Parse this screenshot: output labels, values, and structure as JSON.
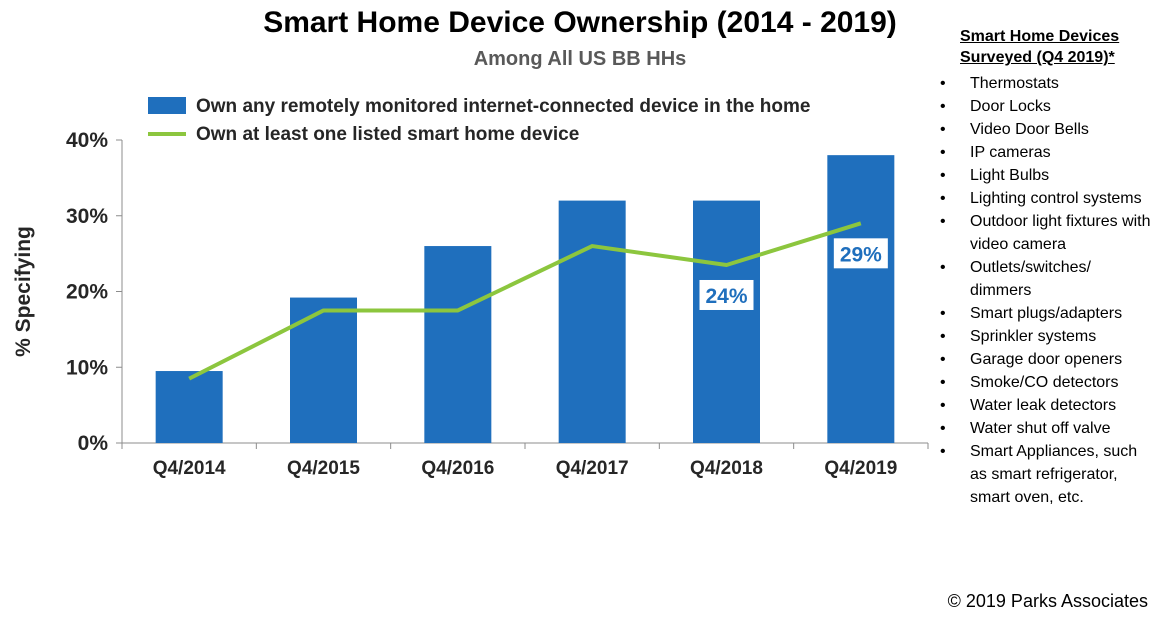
{
  "chart_data": {
    "type": "bar",
    "title": "Smart Home Device Ownership (2014 - 2019)",
    "subtitle": "Among All US BB HHs",
    "ylabel": "% Specifying",
    "categories": [
      "Q4/2014",
      "Q4/2015",
      "Q4/2016",
      "Q4/2017",
      "Q4/2018",
      "Q4/2019"
    ],
    "series": [
      {
        "name": "Own any remotely monitored internet-connected device in the home",
        "type": "bar",
        "color": "#1f6fbd",
        "values": [
          9.5,
          19.2,
          26,
          32,
          32,
          38
        ]
      },
      {
        "name": "Own at least one listed smart home device",
        "type": "line",
        "color": "#8cc63e",
        "values": [
          8.5,
          17.5,
          17.5,
          26,
          23.5,
          29
        ]
      }
    ],
    "data_labels": [
      {
        "category": "Q4/2018",
        "text": "24%"
      },
      {
        "category": "Q4/2019",
        "text": "29%"
      }
    ],
    "ylim": [
      0,
      40
    ],
    "yticks": [
      "0%",
      "10%",
      "20%",
      "30%",
      "40%"
    ],
    "ytick_values": [
      0,
      10,
      20,
      30,
      40
    ],
    "grid": false,
    "legend": "top"
  },
  "sidebar": {
    "title": "Smart Home Devices Surveyed (Q4 2019)*",
    "items": [
      "Thermostats",
      "Door Locks",
      "Video Door Bells",
      "IP cameras",
      "Light Bulbs",
      "Lighting control systems",
      "Outdoor light fixtures with video camera",
      "Outlets/switches/ dimmers",
      "Smart plugs/adapters",
      "Sprinkler systems",
      "Garage door openers",
      "Smoke/CO detectors",
      "Water leak detectors",
      "Water shut off valve",
      "Smart Appliances, such as smart refrigerator, smart oven, etc."
    ]
  },
  "copyright": "© 2019 Parks Associates"
}
